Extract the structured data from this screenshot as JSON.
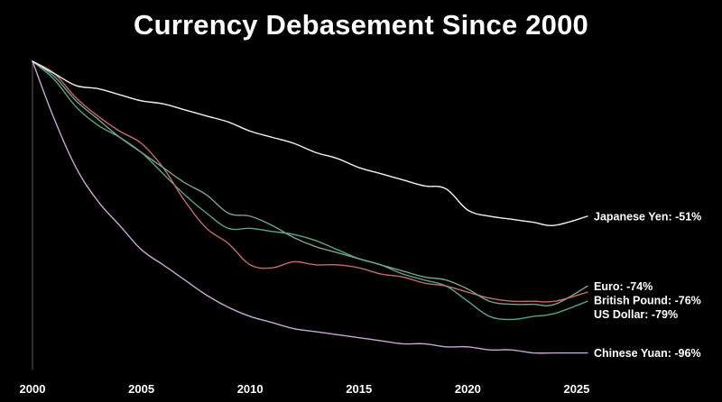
{
  "chart_data": {
    "type": "line",
    "title": "Currency Debasement Since 2000",
    "xlabel": "",
    "ylabel": "",
    "xlim": [
      2000,
      2025.5
    ],
    "ylim": [
      -100,
      0
    ],
    "grid": false,
    "x_ticks": [
      "2000",
      "2005",
      "2010",
      "2015",
      "2020",
      "2025"
    ],
    "series": [
      {
        "name": "Japanese Yen",
        "label": "Japanese Yen: -51%",
        "color": "#f2f2f2",
        "x": [
          2000,
          2001,
          2002,
          2003,
          2004,
          2005,
          2006,
          2007,
          2008,
          2009,
          2010,
          2011,
          2012,
          2013,
          2014,
          2015,
          2016,
          2017,
          2018,
          2019,
          2020,
          2021,
          2022,
          2023,
          2024,
          2025.5
        ],
        "values": [
          0,
          -4,
          -8,
          -9,
          -11,
          -13,
          -14,
          -16,
          -18,
          -20,
          -23,
          -25,
          -27,
          -30,
          -32,
          -35,
          -37,
          -39,
          -41,
          -42,
          -49,
          -51,
          -52,
          -53,
          -54,
          -51
        ]
      },
      {
        "name": "Euro",
        "label": "Euro: -74%",
        "color": "#7aa18a",
        "x": [
          2000,
          2001,
          2002,
          2003,
          2004,
          2005,
          2006,
          2007,
          2008,
          2009,
          2010,
          2011,
          2012,
          2013,
          2014,
          2015,
          2016,
          2017,
          2018,
          2019,
          2020,
          2021,
          2022,
          2023,
          2024,
          2025.5
        ],
        "values": [
          0,
          -5,
          -13,
          -19,
          -25,
          -30,
          -35,
          -40,
          -44,
          -50,
          -51,
          -54,
          -58,
          -61,
          -63,
          -65,
          -67,
          -69,
          -71,
          -72,
          -75,
          -79,
          -80,
          -80,
          -80,
          -74
        ]
      },
      {
        "name": "British Pound",
        "label": "British Pound: -76%",
        "color": "#c76a6a",
        "x": [
          2000,
          2001,
          2002,
          2003,
          2004,
          2005,
          2006,
          2007,
          2008,
          2009,
          2010,
          2011,
          2012,
          2013,
          2014,
          2015,
          2016,
          2017,
          2018,
          2019,
          2020,
          2021,
          2022,
          2023,
          2024,
          2025.5
        ],
        "values": [
          0,
          -4,
          -12,
          -18,
          -23,
          -27,
          -35,
          -46,
          -55,
          -60,
          -67,
          -68,
          -66,
          -67,
          -67,
          -68,
          -70,
          -71,
          -73,
          -74,
          -76,
          -78,
          -79,
          -79,
          -79,
          -76
        ]
      },
      {
        "name": "US Dollar",
        "label": "US Dollar: -79%",
        "color": "#4fa88a",
        "x": [
          2000,
          2001,
          2002,
          2003,
          2004,
          2005,
          2006,
          2007,
          2008,
          2009,
          2010,
          2011,
          2012,
          2013,
          2014,
          2015,
          2016,
          2017,
          2018,
          2019,
          2020,
          2021,
          2022,
          2023,
          2024,
          2025.5
        ],
        "values": [
          0,
          -6,
          -15,
          -21,
          -25,
          -30,
          -37,
          -44,
          -50,
          -55,
          -55,
          -56,
          -57,
          -59,
          -62,
          -65,
          -67,
          -70,
          -72,
          -74,
          -79,
          -84,
          -85,
          -84,
          -83,
          -79
        ]
      },
      {
        "name": "Chinese Yuan",
        "label": "Chinese Yuan: -96%",
        "color": "#c8a7d6",
        "x": [
          2000,
          2001,
          2002,
          2003,
          2004,
          2005,
          2006,
          2007,
          2008,
          2009,
          2010,
          2011,
          2012,
          2013,
          2014,
          2015,
          2016,
          2017,
          2018,
          2019,
          2020,
          2021,
          2022,
          2023,
          2024,
          2025.5
        ],
        "values": [
          0,
          -19,
          -35,
          -46,
          -54,
          -62,
          -67,
          -72,
          -77,
          -81,
          -84,
          -86,
          -88,
          -89,
          -90,
          -91,
          -92,
          -93,
          -93,
          -94,
          -94,
          -95,
          -95,
          -96,
          -96,
          -96
        ]
      }
    ]
  }
}
